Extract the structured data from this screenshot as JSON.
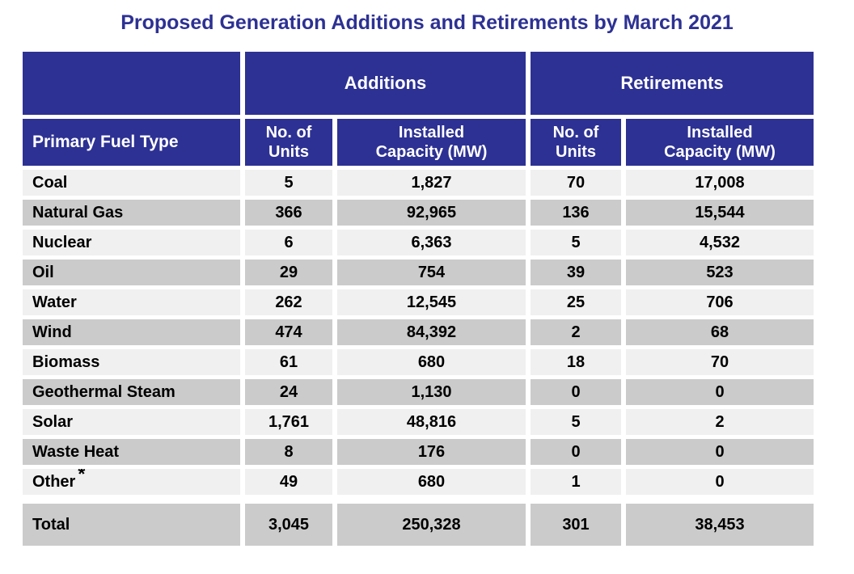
{
  "title": "Proposed Generation Additions and Retirements by March 2021",
  "colors": {
    "header_navy": "#2D3193",
    "title_navy": "#2D3193",
    "row_light": "#F0F0F0",
    "row_gray": "#CBCBCB",
    "data_text": "#000000",
    "header_text": "#FFFFFF"
  },
  "chart_data": {
    "type": "table",
    "title": "Proposed Generation Additions and Retirements by March 2021",
    "group_headers": {
      "blank": "",
      "additions": "Additions",
      "retirements": "Retirements"
    },
    "columns": {
      "fuel": "Primary Fuel Type",
      "add_units": {
        "line1": "No. of",
        "line2": "Units",
        "full": "No. of Units"
      },
      "add_capacity": {
        "line1": "Installed",
        "line2": "Capacity (MW)",
        "full": "Installed Capacity (MW)"
      },
      "ret_units": {
        "line1": "No. of",
        "line2": "Units",
        "full": "No. of Units"
      },
      "ret_capacity": {
        "line1": "Installed",
        "line2": "Capacity (MW)",
        "full": "Installed Capacity (MW)"
      }
    },
    "rows": [
      {
        "fuel": "Coal",
        "add_units": "5",
        "add_capacity": "1,827",
        "ret_units": "70",
        "ret_capacity": "17,008"
      },
      {
        "fuel": "Natural Gas",
        "add_units": "366",
        "add_capacity": "92,965",
        "ret_units": "136",
        "ret_capacity": "15,544"
      },
      {
        "fuel": "Nuclear",
        "add_units": "6",
        "add_capacity": "6,363",
        "ret_units": "5",
        "ret_capacity": "4,532"
      },
      {
        "fuel": "Oil",
        "add_units": "29",
        "add_capacity": "754",
        "ret_units": "39",
        "ret_capacity": "523"
      },
      {
        "fuel": "Water",
        "add_units": "262",
        "add_capacity": "12,545",
        "ret_units": "25",
        "ret_capacity": "706"
      },
      {
        "fuel": "Wind",
        "add_units": "474",
        "add_capacity": "84,392",
        "ret_units": "2",
        "ret_capacity": "68"
      },
      {
        "fuel": "Biomass",
        "add_units": "61",
        "add_capacity": "680",
        "ret_units": "18",
        "ret_capacity": "70"
      },
      {
        "fuel": "Geothermal Steam",
        "add_units": "24",
        "add_capacity": "1,130",
        "ret_units": "0",
        "ret_capacity": "0"
      },
      {
        "fuel": "Solar",
        "add_units": "1,761",
        "add_capacity": "48,816",
        "ret_units": "5",
        "ret_capacity": "2"
      },
      {
        "fuel": "Waste Heat",
        "add_units": "8",
        "add_capacity": "176",
        "ret_units": "0",
        "ret_capacity": "0"
      },
      {
        "fuel": "Other",
        "note": "*",
        "add_units": "49",
        "add_capacity": "680",
        "ret_units": "1",
        "ret_capacity": "0"
      }
    ],
    "total": {
      "fuel": "Total",
      "add_units": "3,045",
      "add_capacity": "250,328",
      "ret_units": "301",
      "ret_capacity": "38,453"
    }
  }
}
